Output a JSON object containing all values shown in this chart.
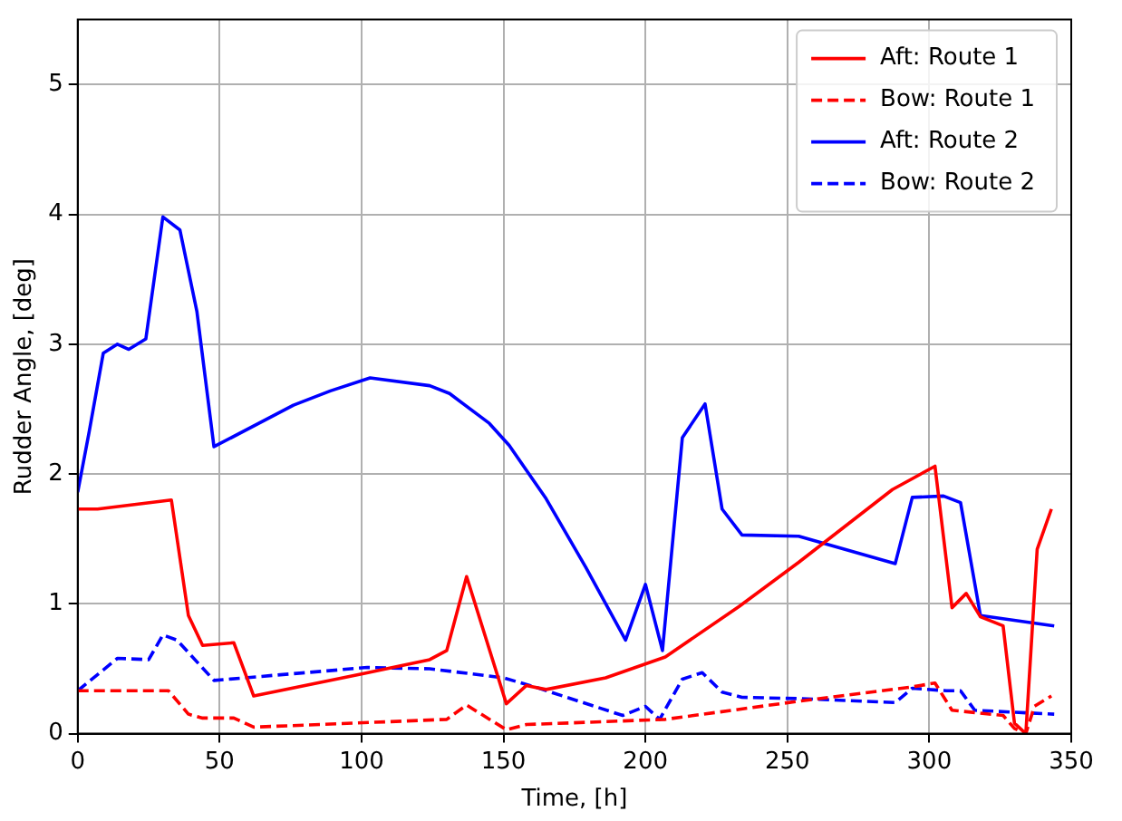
{
  "chart_data": {
    "type": "line",
    "xlabel": "Time, [h]",
    "ylabel": "Rudder Angle, [deg]",
    "xlim": [
      0,
      350
    ],
    "xticks": [
      0,
      50,
      100,
      150,
      200,
      250,
      300,
      350
    ],
    "ylim": [
      0,
      5.5
    ],
    "yticks": [
      0,
      1,
      2,
      3,
      4,
      5
    ],
    "grid": true,
    "legend": "top right",
    "marker": "none",
    "series": [
      {
        "name": "Aft: Route 1",
        "color": "#ff0000",
        "line_style": "solid",
        "x": [
          0,
          7,
          33,
          39,
          44,
          55,
          62,
          100,
          124,
          130,
          137,
          151,
          158,
          165,
          186,
          207,
          233,
          254,
          287,
          302,
          308,
          313,
          318,
          326,
          330,
          334,
          338,
          343
        ],
        "values": [
          1.73,
          1.73,
          1.8,
          0.91,
          0.68,
          0.7,
          0.29,
          0.46,
          0.57,
          0.64,
          1.21,
          0.23,
          0.37,
          0.34,
          0.43,
          0.59,
          0.98,
          1.32,
          1.88,
          2.06,
          0.97,
          1.08,
          0.9,
          0.83,
          0.08,
          0,
          1.42,
          1.73
        ]
      },
      {
        "name": "Bow: Route 1",
        "color": "#ff0000",
        "line_style": "dashed",
        "x": [
          0,
          32,
          39,
          44,
          55,
          62,
          130,
          137,
          151,
          158,
          207,
          254,
          294,
          302,
          308,
          326,
          330,
          334,
          337,
          343
        ],
        "values": [
          0.33,
          0.33,
          0.15,
          0.12,
          0.12,
          0.05,
          0.11,
          0.22,
          0.03,
          0.07,
          0.11,
          0.25,
          0.36,
          0.39,
          0.18,
          0.14,
          0.04,
          0,
          0.21,
          0.29
        ]
      },
      {
        "name": "Aft: Route 2",
        "color": "#0000ff",
        "line_style": "solid",
        "x": [
          0,
          4,
          9,
          14,
          18,
          24,
          30,
          36,
          42,
          48,
          76,
          89,
          103,
          124,
          131,
          145,
          152,
          165,
          179,
          193,
          200,
          206,
          213,
          221,
          227,
          234,
          254,
          288,
          294,
          305,
          311,
          318,
          344
        ],
        "values": [
          1.86,
          2.32,
          2.93,
          3.0,
          2.96,
          3.04,
          3.98,
          3.88,
          3.25,
          2.21,
          2.53,
          2.64,
          2.74,
          2.68,
          2.62,
          2.39,
          2.22,
          1.81,
          1.28,
          0.72,
          1.15,
          0.64,
          2.28,
          2.54,
          1.73,
          1.53,
          1.52,
          1.31,
          1.82,
          1.83,
          1.78,
          0.91,
          0.83
        ]
      },
      {
        "name": "Bow: Route 2",
        "color": "#0000ff",
        "line_style": "dashed",
        "x": [
          0,
          14,
          25,
          30,
          35,
          48,
          102,
          124,
          150,
          161,
          192,
          200,
          205,
          213,
          220,
          227,
          234,
          254,
          288,
          294,
          306,
          311,
          316,
          344
        ],
        "values": [
          0.33,
          0.58,
          0.57,
          0.76,
          0.72,
          0.41,
          0.51,
          0.5,
          0.43,
          0.36,
          0.14,
          0.21,
          0.11,
          0.42,
          0.47,
          0.32,
          0.28,
          0.27,
          0.24,
          0.35,
          0.33,
          0.33,
          0.18,
          0.15
        ]
      }
    ]
  }
}
